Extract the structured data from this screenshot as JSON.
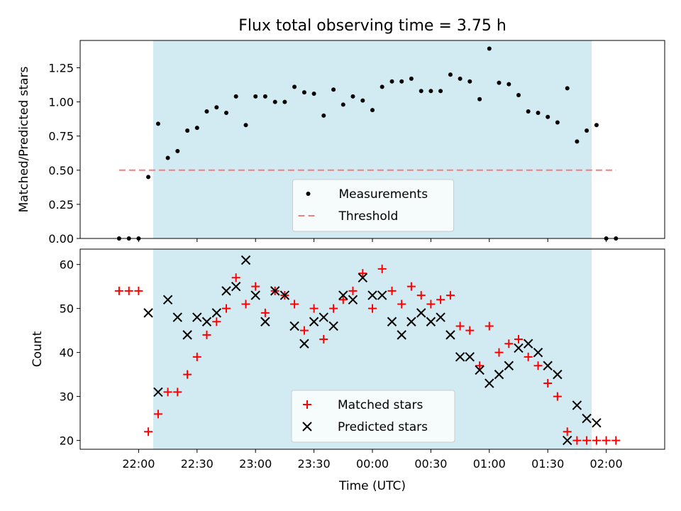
{
  "title": "Flux total observing time = 3.75 h",
  "colors": {
    "observing_window": "#add8e6",
    "measurement": "#000000",
    "threshold": "#f08080",
    "matched": "#ff0000",
    "predicted": "#000000"
  },
  "chart_data": [
    {
      "type": "scatter",
      "ylabel": "Matched/Predicted stars",
      "xlabel": "",
      "ylim": [
        0,
        1.45
      ],
      "x_unit": "hours after 21:00 UTC",
      "x_axis_note": "shared time axis with lower panel",
      "observing_window": [
        22.125,
        25.875
      ],
      "yticks": [
        "0.00",
        "0.25",
        "0.50",
        "0.75",
        "1.00",
        "1.25"
      ],
      "yticks_values": [
        0,
        0.25,
        0.5,
        0.75,
        1.0,
        1.25
      ],
      "threshold": {
        "name": "Threshold",
        "value": 0.5,
        "x_range": [
          21.833,
          26.083
        ]
      },
      "series": [
        {
          "name": "Measurements",
          "x": [
            21.833,
            21.917,
            22.0,
            22.083,
            22.167,
            22.25,
            22.333,
            22.417,
            22.5,
            22.583,
            22.667,
            22.75,
            22.833,
            22.917,
            23.0,
            23.083,
            23.167,
            23.25,
            23.333,
            23.417,
            23.5,
            23.583,
            23.667,
            23.75,
            23.833,
            23.917,
            24.0,
            24.083,
            24.167,
            24.25,
            24.333,
            24.417,
            24.5,
            24.583,
            24.667,
            24.75,
            24.833,
            24.917,
            25.0,
            25.083,
            25.167,
            25.25,
            25.333,
            25.417,
            25.5,
            25.583,
            25.667,
            25.75,
            25.833,
            25.917,
            26.0
          ],
          "values": [
            0.0,
            0.0,
            0.0,
            0.45,
            0.84,
            0.59,
            0.64,
            0.79,
            0.81,
            0.93,
            0.96,
            0.92,
            1.04,
            0.83,
            1.04,
            1.04,
            1.0,
            1.0,
            1.11,
            1.07,
            1.06,
            0.9,
            1.09,
            0.98,
            1.04,
            1.01,
            0.94,
            1.11,
            1.15,
            1.15,
            1.17,
            1.08,
            1.08,
            1.08,
            1.2,
            1.17,
            1.15,
            1.02,
            1.39,
            1.14,
            1.13,
            1.05,
            0.93,
            0.92,
            0.89,
            0.85,
            1.1,
            0.71,
            0.79,
            0.83,
            0.0
          ]
        }
      ],
      "extra_points": [
        {
          "x": 26.083,
          "value": 0.0
        }
      ],
      "legend": {
        "placement": "lower center",
        "items": [
          {
            "label": "Measurements",
            "marker": "dot"
          },
          {
            "label": "Threshold",
            "marker": "dashed-line"
          }
        ]
      }
    },
    {
      "type": "scatter",
      "xlabel": "Time (UTC)",
      "ylabel": "Count",
      "ylim": [
        18,
        63.5
      ],
      "x_unit": "hours after 21:00 UTC",
      "xlim": [
        21.5,
        26.5
      ],
      "xticks": [
        "22:00",
        "22:30",
        "23:00",
        "23:30",
        "00:00",
        "00:30",
        "01:00",
        "01:30",
        "02:00"
      ],
      "xticks_values": [
        22.0,
        22.5,
        23.0,
        23.5,
        24.0,
        24.5,
        25.0,
        25.5,
        26.0
      ],
      "yticks": [
        "20",
        "30",
        "40",
        "50",
        "60"
      ],
      "yticks_values": [
        20,
        30,
        40,
        50,
        60
      ],
      "observing_window": [
        22.125,
        25.875
      ],
      "series": [
        {
          "name": "Matched stars",
          "marker": "plus",
          "x": [
            21.833,
            21.917,
            22.0,
            22.083,
            22.167,
            22.25,
            22.333,
            22.417,
            22.5,
            22.583,
            22.667,
            22.75,
            22.833,
            22.917,
            23.0,
            23.083,
            23.167,
            23.25,
            23.333,
            23.417,
            23.5,
            23.583,
            23.667,
            23.75,
            23.833,
            23.917,
            24.0,
            24.083,
            24.167,
            24.25,
            24.333,
            24.417,
            24.5,
            24.583,
            24.667,
            24.75,
            24.833,
            24.917,
            25.0,
            25.083,
            25.167,
            25.25,
            25.333,
            25.417,
            25.5,
            25.583,
            25.667,
            25.75,
            25.833,
            25.917,
            26.0,
            26.083
          ],
          "values": [
            54,
            54,
            54,
            22,
            26,
            31,
            31,
            35,
            39,
            44,
            47,
            50,
            57,
            51,
            55,
            49,
            54,
            53,
            51,
            45,
            50,
            43,
            50,
            52,
            54,
            58,
            50,
            59,
            54,
            51,
            55,
            53,
            51,
            52,
            53,
            46,
            45,
            37,
            46,
            40,
            42,
            43,
            39,
            37,
            33,
            30,
            22,
            20,
            20,
            20,
            20,
            20
          ]
        },
        {
          "name": "Predicted stars",
          "marker": "x",
          "x": [
            22.083,
            22.167,
            22.25,
            22.333,
            22.417,
            22.5,
            22.583,
            22.667,
            22.75,
            22.833,
            22.917,
            23.0,
            23.083,
            23.167,
            23.25,
            23.333,
            23.417,
            23.5,
            23.583,
            23.667,
            23.75,
            23.833,
            23.917,
            24.0,
            24.083,
            24.167,
            24.25,
            24.333,
            24.417,
            24.5,
            24.583,
            24.667,
            24.75,
            24.833,
            24.917,
            25.0,
            25.083,
            25.167,
            25.25,
            25.333,
            25.417,
            25.5,
            25.583,
            25.667,
            25.75,
            25.833,
            25.917
          ],
          "values": [
            49,
            31,
            52,
            48,
            44,
            48,
            47,
            49,
            54,
            55,
            61,
            53,
            47,
            54,
            53,
            46,
            42,
            47,
            48,
            46,
            53,
            52,
            57,
            53,
            53,
            47,
            44,
            47,
            49,
            47,
            48,
            44,
            39,
            39,
            36,
            33,
            35,
            37,
            41,
            42,
            40,
            37,
            35,
            20,
            28,
            25,
            24
          ]
        }
      ],
      "legend": {
        "placement": "lower center",
        "items": [
          {
            "label": "Matched stars",
            "marker": "plus"
          },
          {
            "label": "Predicted stars",
            "marker": "x"
          }
        ]
      }
    }
  ]
}
